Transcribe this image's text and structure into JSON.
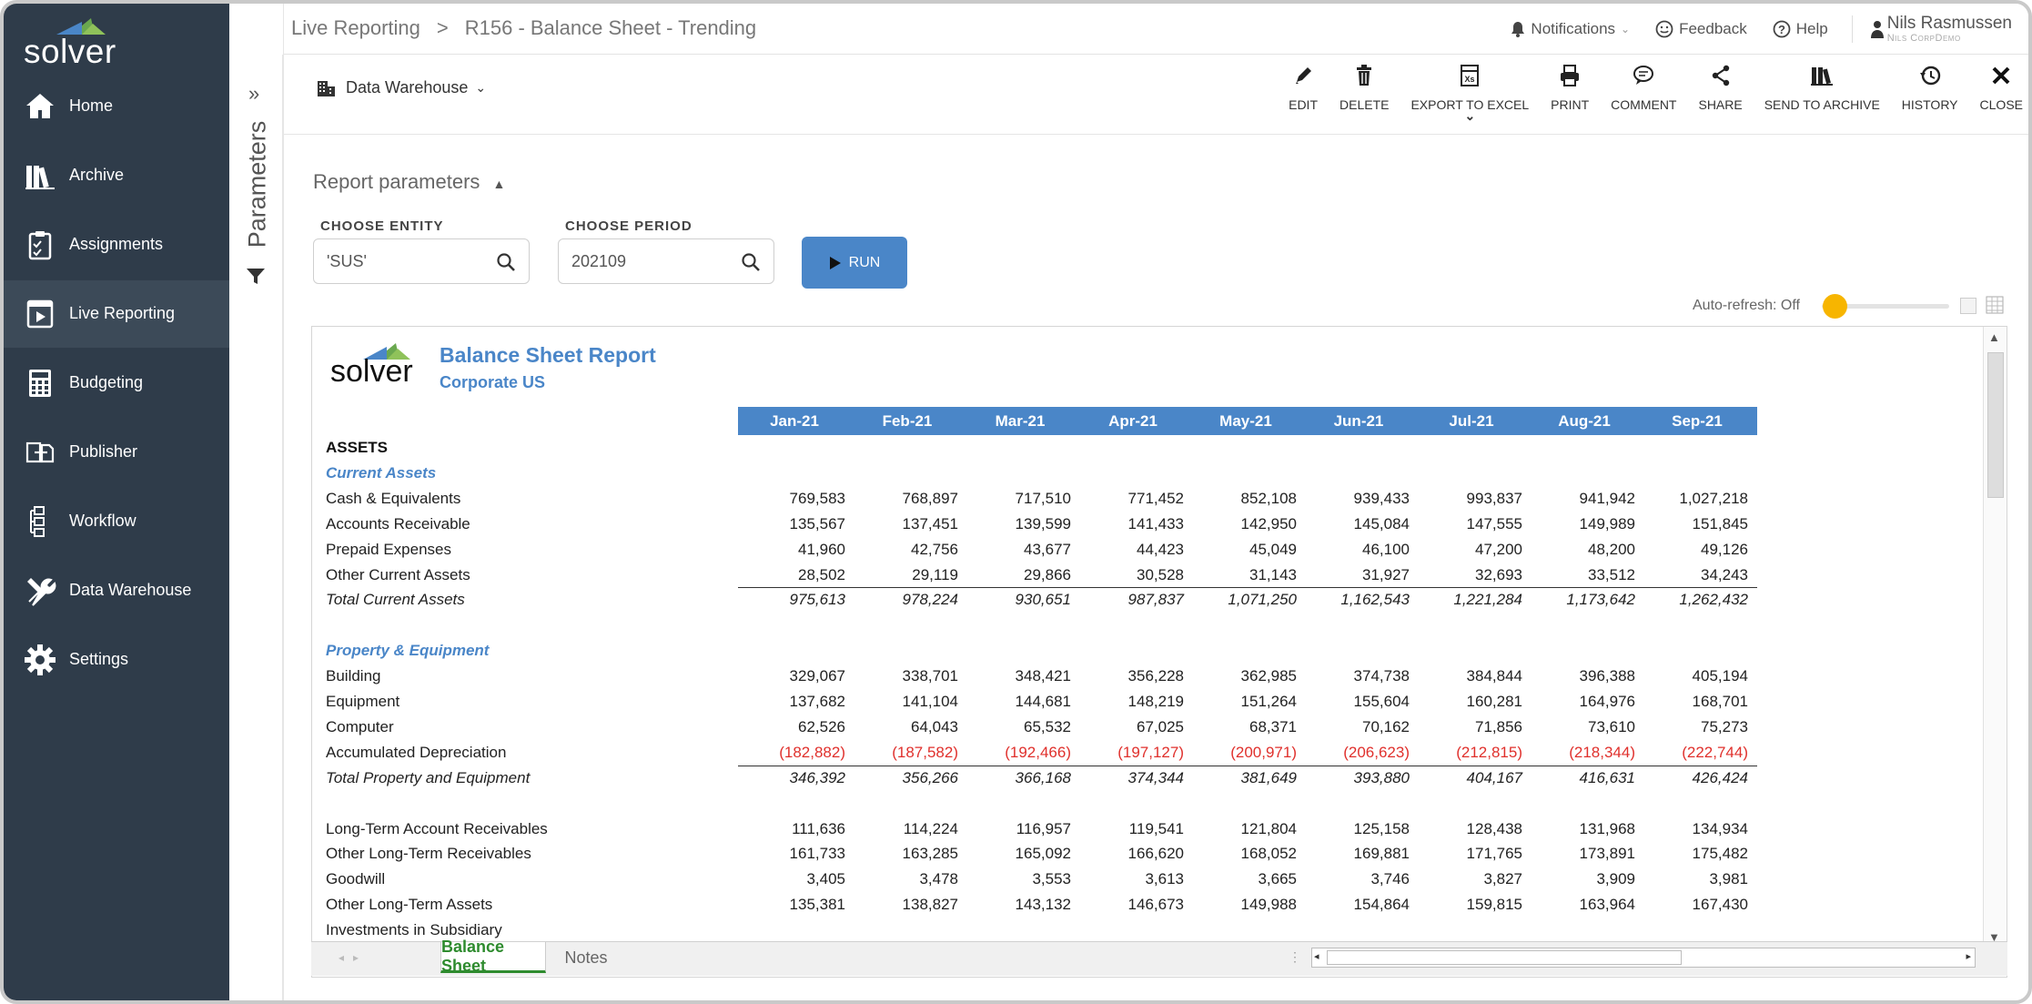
{
  "sidebar": {
    "items": [
      {
        "label": "Home",
        "icon": "home-icon"
      },
      {
        "label": "Archive",
        "icon": "archive-icon"
      },
      {
        "label": "Assignments",
        "icon": "assignments-icon"
      },
      {
        "label": "Live Reporting",
        "icon": "live-reporting-icon",
        "active": true
      },
      {
        "label": "Budgeting",
        "icon": "calculator-icon"
      },
      {
        "label": "Publisher",
        "icon": "publisher-icon"
      },
      {
        "label": "Workflow",
        "icon": "workflow-icon"
      },
      {
        "label": "Data Warehouse",
        "icon": "tools-icon"
      },
      {
        "label": "Settings",
        "icon": "gear-icon"
      }
    ]
  },
  "header": {
    "logo": "solver",
    "breadcrumb": [
      "Live Reporting",
      "R156 - Balance Sheet - Trending"
    ],
    "breadcrumb_sep": ">",
    "notifications": "Notifications",
    "feedback": "Feedback",
    "help": "Help",
    "user_name": "Nils Rasmussen",
    "user_company": "Nils CorpDemo"
  },
  "parameters_panel": {
    "label": "Parameters"
  },
  "toolbar": {
    "source": "Data Warehouse",
    "actions": [
      {
        "label": "EDIT",
        "icon": "pencil-icon"
      },
      {
        "label": "DELETE",
        "icon": "trash-icon"
      },
      {
        "label": "EXPORT TO EXCEL",
        "icon": "excel-icon"
      },
      {
        "label": "PRINT",
        "icon": "print-icon"
      },
      {
        "label": "COMMENT",
        "icon": "comment-icon"
      },
      {
        "label": "SHARE",
        "icon": "share-icon"
      },
      {
        "label": "SEND TO ARCHIVE",
        "icon": "archive-send-icon"
      },
      {
        "label": "HISTORY",
        "icon": "history-icon"
      },
      {
        "label": "CLOSE",
        "icon": "close-icon"
      }
    ]
  },
  "params": {
    "title": "Report parameters",
    "entity_label": "CHOOSE ENTITY",
    "entity_value": "'SUS'",
    "period_label": "CHOOSE PERIOD",
    "period_value": "202109",
    "run_label": "RUN",
    "auto_refresh": "Auto-refresh: Off",
    "auto_refresh_on": false
  },
  "report": {
    "logo": "solver",
    "title": "Balance Sheet Report",
    "subtitle": "Corporate US",
    "months": [
      "Jan-21",
      "Feb-21",
      "Mar-21",
      "Apr-21",
      "May-21",
      "Jun-21",
      "Jul-21",
      "Aug-21",
      "Sep-21"
    ],
    "rows": [
      {
        "type": "sec",
        "label": "ASSETS",
        "values": []
      },
      {
        "type": "sub",
        "label": "Current Assets",
        "values": []
      },
      {
        "type": "line",
        "label": "Cash & Equivalents",
        "values": [
          "769,583",
          "768,897",
          "717,510",
          "771,452",
          "852,108",
          "939,433",
          "993,837",
          "941,942",
          "1,027,218"
        ]
      },
      {
        "type": "line",
        "label": "Accounts Receivable",
        "values": [
          "135,567",
          "137,451",
          "139,599",
          "141,433",
          "142,950",
          "145,084",
          "147,555",
          "149,989",
          "151,845"
        ]
      },
      {
        "type": "line",
        "label": "Prepaid Expenses",
        "values": [
          "41,960",
          "42,756",
          "43,677",
          "44,423",
          "45,049",
          "46,100",
          "47,200",
          "48,200",
          "49,126"
        ]
      },
      {
        "type": "line",
        "label": "Other Current Assets",
        "values": [
          "28,502",
          "29,119",
          "29,866",
          "30,528",
          "31,143",
          "31,927",
          "32,693",
          "33,512",
          "34,243"
        ]
      },
      {
        "type": "tot",
        "label": "Total Current Assets",
        "values": [
          "975,613",
          "978,224",
          "930,651",
          "987,837",
          "1,071,250",
          "1,162,543",
          "1,221,284",
          "1,173,642",
          "1,262,432"
        ]
      },
      {
        "type": "blank",
        "label": "",
        "values": []
      },
      {
        "type": "sub",
        "label": "Property & Equipment",
        "values": []
      },
      {
        "type": "line",
        "label": "Building",
        "values": [
          "329,067",
          "338,701",
          "348,421",
          "356,228",
          "362,985",
          "374,738",
          "384,844",
          "396,388",
          "405,194"
        ]
      },
      {
        "type": "line",
        "label": "Equipment",
        "values": [
          "137,682",
          "141,104",
          "144,681",
          "148,219",
          "151,264",
          "155,604",
          "160,281",
          "164,976",
          "168,701"
        ]
      },
      {
        "type": "line",
        "label": "Computer",
        "values": [
          "62,526",
          "64,043",
          "65,532",
          "67,025",
          "68,371",
          "70,162",
          "71,856",
          "73,610",
          "75,273"
        ]
      },
      {
        "type": "neg",
        "label": "Accumulated Depreciation",
        "values": [
          "(182,882)",
          "(187,582)",
          "(192,466)",
          "(197,127)",
          "(200,971)",
          "(206,623)",
          "(212,815)",
          "(218,344)",
          "(222,744)"
        ]
      },
      {
        "type": "tot",
        "label": "Total Property and Equipment",
        "values": [
          "346,392",
          "356,266",
          "366,168",
          "374,344",
          "381,649",
          "393,880",
          "404,167",
          "416,631",
          "426,424"
        ]
      },
      {
        "type": "blank",
        "label": "",
        "values": []
      },
      {
        "type": "line",
        "label": "Long-Term Account Receivables",
        "values": [
          "111,636",
          "114,224",
          "116,957",
          "119,541",
          "121,804",
          "125,158",
          "128,438",
          "131,968",
          "134,934"
        ]
      },
      {
        "type": "line",
        "label": "Other Long-Term Receivables",
        "values": [
          "161,733",
          "163,285",
          "165,092",
          "166,620",
          "168,052",
          "169,881",
          "171,765",
          "173,891",
          "175,482"
        ]
      },
      {
        "type": "line",
        "label": "Goodwill",
        "values": [
          "3,405",
          "3,478",
          "3,553",
          "3,613",
          "3,665",
          "3,746",
          "3,827",
          "3,909",
          "3,981"
        ]
      },
      {
        "type": "line",
        "label": "Other Long-Term Assets",
        "values": [
          "135,381",
          "138,827",
          "143,132",
          "146,673",
          "149,988",
          "154,864",
          "159,815",
          "163,964",
          "167,430"
        ]
      },
      {
        "type": "line",
        "label": "Investments in Subsidiary",
        "values": []
      }
    ]
  },
  "sheet_tabs": [
    "Balance Sheet",
    "Notes"
  ],
  "colors": {
    "sidebar": "#2f3c4a",
    "accent": "#4a86c8",
    "negative": "#e0302c",
    "tab_active": "#2e8b2e",
    "toggle": "#f7b500"
  }
}
